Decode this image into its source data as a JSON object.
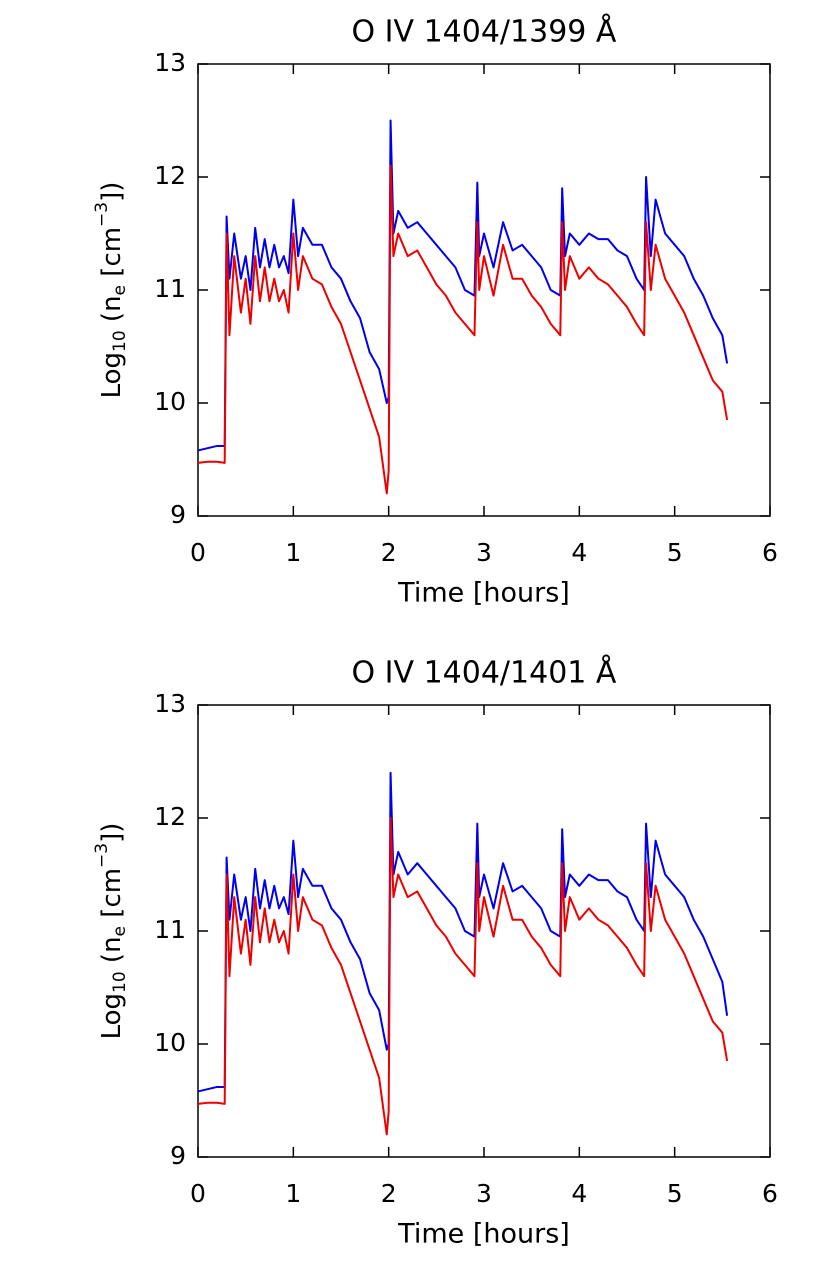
{
  "chart_data": [
    {
      "type": "line",
      "title": "O IV 1404/1399 Å",
      "x_label": "Time [hours]",
      "y_label": [
        {
          "text": "Log",
          "shift": "base"
        },
        {
          "text": "10",
          "shift": "sub"
        },
        {
          "text": " (n",
          "shift": "base"
        },
        {
          "text": "e",
          "shift": "sub"
        },
        {
          "text": " [cm",
          "shift": "base"
        },
        {
          "text": "−3",
          "shift": "super"
        },
        {
          "text": "])",
          "shift": "base"
        }
      ],
      "xlim": [
        0,
        6
      ],
      "xticks": [
        0,
        1,
        2,
        3,
        4,
        5,
        6
      ],
      "ylim": [
        9,
        13
      ],
      "yticks": [
        9,
        10,
        11,
        12,
        13
      ],
      "x": [
        0,
        0.1,
        0.2,
        0.28,
        0.3,
        0.33,
        0.38,
        0.45,
        0.5,
        0.55,
        0.6,
        0.65,
        0.7,
        0.75,
        0.8,
        0.85,
        0.9,
        0.95,
        1.0,
        1.05,
        1.1,
        1.2,
        1.3,
        1.4,
        1.5,
        1.6,
        1.7,
        1.8,
        1.9,
        1.98,
        2.0,
        2.02,
        2.05,
        2.1,
        2.2,
        2.3,
        2.4,
        2.5,
        2.6,
        2.7,
        2.8,
        2.9,
        2.93,
        2.95,
        3.0,
        3.1,
        3.2,
        3.3,
        3.4,
        3.5,
        3.6,
        3.7,
        3.8,
        3.82,
        3.85,
        3.9,
        4.0,
        4.1,
        4.2,
        4.3,
        4.4,
        4.5,
        4.6,
        4.68,
        4.7,
        4.75,
        4.8,
        4.9,
        5.0,
        5.1,
        5.2,
        5.3,
        5.4,
        5.5,
        5.55
      ],
      "series": [
        {
          "color": "#0000ee",
          "values": [
            9.58,
            9.6,
            9.62,
            9.62,
            11.65,
            11.1,
            11.5,
            11.1,
            11.3,
            11.0,
            11.55,
            11.2,
            11.45,
            11.2,
            11.4,
            11.2,
            11.3,
            11.15,
            11.8,
            11.3,
            11.55,
            11.4,
            11.4,
            11.2,
            11.1,
            10.9,
            10.75,
            10.45,
            10.3,
            10.0,
            10.05,
            12.5,
            11.5,
            11.7,
            11.55,
            11.6,
            11.5,
            11.4,
            11.3,
            11.2,
            11.0,
            10.95,
            11.95,
            11.3,
            11.5,
            11.2,
            11.6,
            11.35,
            11.4,
            11.3,
            11.2,
            11.0,
            10.95,
            11.9,
            11.3,
            11.5,
            11.4,
            11.5,
            11.45,
            11.45,
            11.35,
            11.3,
            11.1,
            11.0,
            12.0,
            11.3,
            11.8,
            11.5,
            11.4,
            11.3,
            11.1,
            10.95,
            10.75,
            10.6,
            10.35
          ]
        },
        {
          "color": "#ee0000",
          "values": [
            9.47,
            9.48,
            9.48,
            9.47,
            11.5,
            10.6,
            11.3,
            10.8,
            11.1,
            10.7,
            11.3,
            10.9,
            11.2,
            10.9,
            11.1,
            10.9,
            11.0,
            10.8,
            11.5,
            11.0,
            11.3,
            11.1,
            11.05,
            10.85,
            10.7,
            10.45,
            10.2,
            9.95,
            9.7,
            9.2,
            9.4,
            12.1,
            11.3,
            11.5,
            11.3,
            11.35,
            11.2,
            11.05,
            10.95,
            10.8,
            10.7,
            10.6,
            11.6,
            11.0,
            11.3,
            10.95,
            11.4,
            11.1,
            11.1,
            10.95,
            10.85,
            10.7,
            10.6,
            11.6,
            11.0,
            11.3,
            11.1,
            11.2,
            11.1,
            11.05,
            10.95,
            10.85,
            10.7,
            10.6,
            11.6,
            11.0,
            11.4,
            11.1,
            10.95,
            10.8,
            10.6,
            10.4,
            10.2,
            10.1,
            9.85
          ]
        }
      ]
    },
    {
      "type": "line",
      "title": "O IV 1404/1401 Å",
      "x_label": "Time [hours]",
      "y_label": [
        {
          "text": "Log",
          "shift": "base"
        },
        {
          "text": "10",
          "shift": "sub"
        },
        {
          "text": " (n",
          "shift": "base"
        },
        {
          "text": "e",
          "shift": "sub"
        },
        {
          "text": " [cm",
          "shift": "base"
        },
        {
          "text": "−3",
          "shift": "super"
        },
        {
          "text": "])",
          "shift": "base"
        }
      ],
      "xlim": [
        0,
        6
      ],
      "xticks": [
        0,
        1,
        2,
        3,
        4,
        5,
        6
      ],
      "ylim": [
        9,
        13
      ],
      "yticks": [
        9,
        10,
        11,
        12,
        13
      ],
      "x": [
        0,
        0.1,
        0.2,
        0.28,
        0.3,
        0.33,
        0.38,
        0.45,
        0.5,
        0.55,
        0.6,
        0.65,
        0.7,
        0.75,
        0.8,
        0.85,
        0.9,
        0.95,
        1.0,
        1.05,
        1.1,
        1.2,
        1.3,
        1.4,
        1.5,
        1.6,
        1.7,
        1.8,
        1.9,
        1.98,
        2.0,
        2.02,
        2.05,
        2.1,
        2.2,
        2.3,
        2.4,
        2.5,
        2.6,
        2.7,
        2.8,
        2.9,
        2.93,
        2.95,
        3.0,
        3.1,
        3.2,
        3.3,
        3.4,
        3.5,
        3.6,
        3.7,
        3.8,
        3.82,
        3.85,
        3.9,
        4.0,
        4.1,
        4.2,
        4.3,
        4.4,
        4.5,
        4.6,
        4.68,
        4.7,
        4.75,
        4.8,
        4.9,
        5.0,
        5.1,
        5.2,
        5.3,
        5.4,
        5.5,
        5.55
      ],
      "series": [
        {
          "color": "#0000ee",
          "values": [
            9.58,
            9.6,
            9.62,
            9.62,
            11.65,
            11.1,
            11.5,
            11.1,
            11.3,
            11.0,
            11.55,
            11.2,
            11.45,
            11.2,
            11.4,
            11.2,
            11.3,
            11.15,
            11.8,
            11.3,
            11.55,
            11.4,
            11.4,
            11.2,
            11.1,
            10.9,
            10.75,
            10.45,
            10.3,
            9.95,
            10.0,
            12.4,
            11.5,
            11.7,
            11.5,
            11.6,
            11.5,
            11.4,
            11.3,
            11.2,
            11.0,
            10.95,
            11.95,
            11.3,
            11.5,
            11.2,
            11.6,
            11.35,
            11.4,
            11.3,
            11.2,
            11.0,
            10.95,
            11.9,
            11.3,
            11.5,
            11.4,
            11.5,
            11.45,
            11.45,
            11.35,
            11.3,
            11.1,
            11.0,
            11.95,
            11.3,
            11.8,
            11.5,
            11.4,
            11.3,
            11.1,
            10.95,
            10.75,
            10.55,
            10.25
          ]
        },
        {
          "color": "#ee0000",
          "values": [
            9.47,
            9.48,
            9.48,
            9.47,
            11.5,
            10.6,
            11.3,
            10.8,
            11.1,
            10.7,
            11.3,
            10.9,
            11.2,
            10.9,
            11.1,
            10.9,
            11.0,
            10.8,
            11.5,
            11.0,
            11.3,
            11.1,
            11.05,
            10.85,
            10.7,
            10.45,
            10.2,
            9.95,
            9.7,
            9.2,
            9.4,
            12.0,
            11.3,
            11.5,
            11.3,
            11.35,
            11.2,
            11.05,
            10.95,
            10.8,
            10.7,
            10.6,
            11.6,
            11.0,
            11.3,
            10.95,
            11.4,
            11.1,
            11.1,
            10.95,
            10.85,
            10.7,
            10.6,
            11.6,
            11.0,
            11.3,
            11.1,
            11.2,
            11.1,
            11.05,
            10.95,
            10.85,
            10.7,
            10.6,
            11.6,
            11.0,
            11.4,
            11.1,
            10.95,
            10.8,
            10.6,
            10.4,
            10.2,
            10.1,
            9.85
          ]
        }
      ]
    }
  ]
}
